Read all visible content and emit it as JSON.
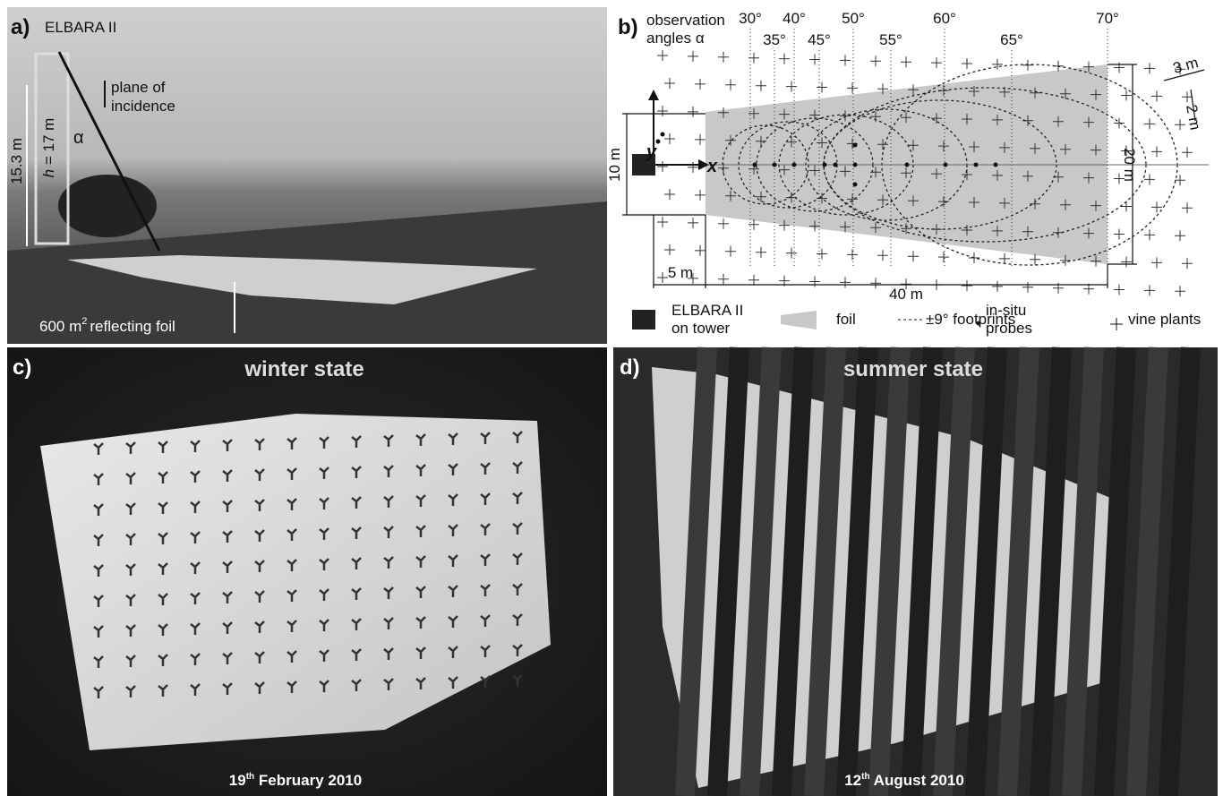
{
  "panel_a": {
    "label": "a)",
    "title": "ELBARA II",
    "plane_line1": "plane of",
    "plane_line2": "incidence",
    "tower_height": "15.3 m",
    "h_symbol": "h",
    "h_value": " = 17 m",
    "alpha": "α",
    "foil_main": "600 m",
    "foil_sup": "2",
    "foil_rest": "reflecting foil"
  },
  "panel_b": {
    "label": "b)",
    "heading_line1": "observation",
    "heading_line2": "angles α",
    "angles": [
      "30°",
      "35°",
      "40°",
      "45°",
      "50°",
      "55°",
      "60°",
      "65°",
      "70°"
    ],
    "axis_y": "y",
    "axis_x": "x",
    "dim_10": "10 m",
    "dim_5": "5 m",
    "dim_40": "40 m",
    "dim_20": "20 m",
    "dim_3": "3 m",
    "dim_2": "2 m",
    "legend": {
      "tower_line1": "ELBARA II",
      "tower_line2": "on tower",
      "foil": "foil",
      "footprints": "±9° footprints",
      "probes_line1": "in-situ",
      "probes_line2": "probes",
      "vines": "vine plants"
    }
  },
  "panel_c": {
    "label": "c)",
    "title": "winter state",
    "date_day": "19",
    "date_sup": "th",
    "date_rest": " February 2010"
  },
  "panel_d": {
    "label": "d)",
    "title": "summer state",
    "date_day": "12",
    "date_sup": "th",
    "date_rest": " August 2010"
  }
}
